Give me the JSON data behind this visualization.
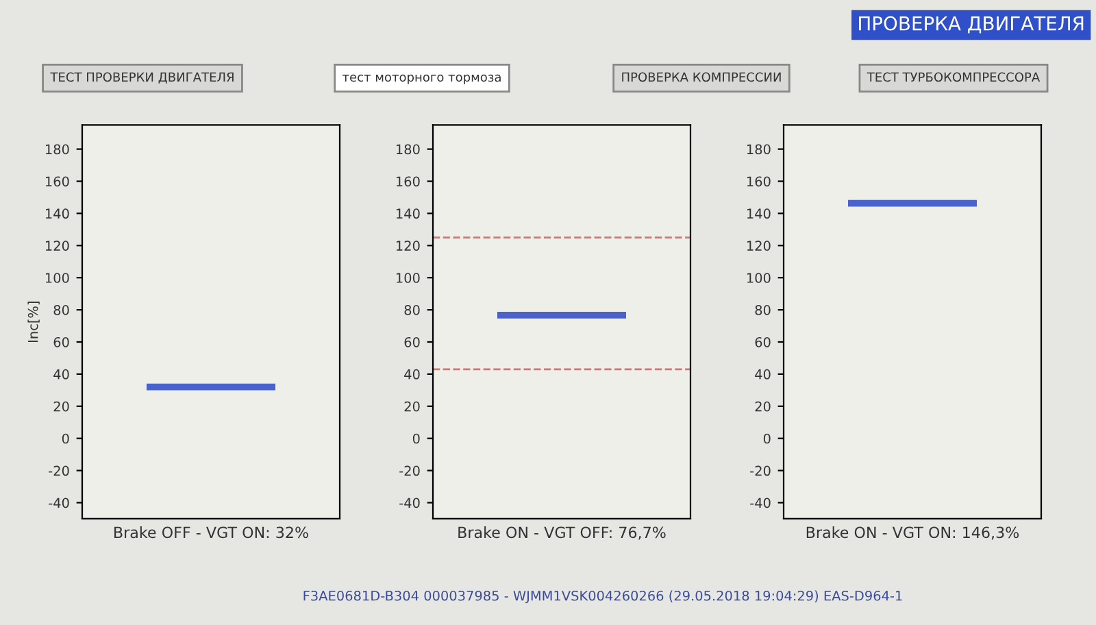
{
  "chart_data": [
    {
      "type": "line",
      "ylabel": "Inc[%]",
      "xlabel": "Brake OFF - VGT ON: 32%",
      "categories": [
        null,
        null
      ],
      "series": [
        {
          "color": "#4a62cc",
          "values": [
            32,
            32
          ]
        }
      ],
      "ylim": [
        -50,
        195
      ],
      "yticks": [
        -40,
        -20,
        0,
        20,
        40,
        60,
        80,
        100,
        120,
        140,
        160,
        180
      ],
      "tick_labels": "y",
      "grid": false,
      "line_style": "solid",
      "legend": false,
      "annotations": [
        "ТЕСТ ПРОВЕРКИ ДВИГАТЕЛЯ"
      ]
    },
    {
      "type": "line",
      "xlabel": "Brake ON - VGT OFF: 76,7%",
      "categories": [
        null,
        null
      ],
      "series": [
        {
          "color": "#4a62cc",
          "values": [
            76.7,
            76.7
          ]
        }
      ],
      "ylim": [
        -50,
        195
      ],
      "yticks": [
        -40,
        -20,
        0,
        20,
        40,
        60,
        80,
        100,
        120,
        140,
        160,
        180
      ],
      "tick_labels": "y",
      "grid": false,
      "line_style": "solid",
      "legend": false,
      "ref_lines": [
        {
          "axis": "y",
          "value": 125,
          "color": "#e07070",
          "line_style": "dashed"
        },
        {
          "axis": "y",
          "value": 43,
          "color": "#e07070",
          "line_style": "dashed"
        }
      ],
      "annotations": [
        "тест моторного тормоза",
        "F3AE0681D-B304 000037985 - WJMM1VSK004260266 (29.05.2018 19:04:29) EAS-D964-1"
      ]
    },
    {
      "type": "line",
      "xlabel": "Brake ON - VGT ON: 146,3%",
      "categories": [
        null,
        null
      ],
      "series": [
        {
          "color": "#4a62cc",
          "values": [
            146.3,
            146.3
          ]
        }
      ],
      "ylim": [
        -50,
        195
      ],
      "yticks": [
        -40,
        -20,
        0,
        20,
        40,
        60,
        80,
        100,
        120,
        140,
        160,
        180
      ],
      "tick_labels": "y",
      "grid": false,
      "line_style": "solid",
      "legend": false,
      "annotations": [
        "ПРОВЕРКА КОМПРЕССИИ",
        "ТЕСТ ТУРБОКОМПРЕССОРА",
        "ПРОВЕРКА ДВИГАТЕЛЯ"
      ]
    }
  ]
}
